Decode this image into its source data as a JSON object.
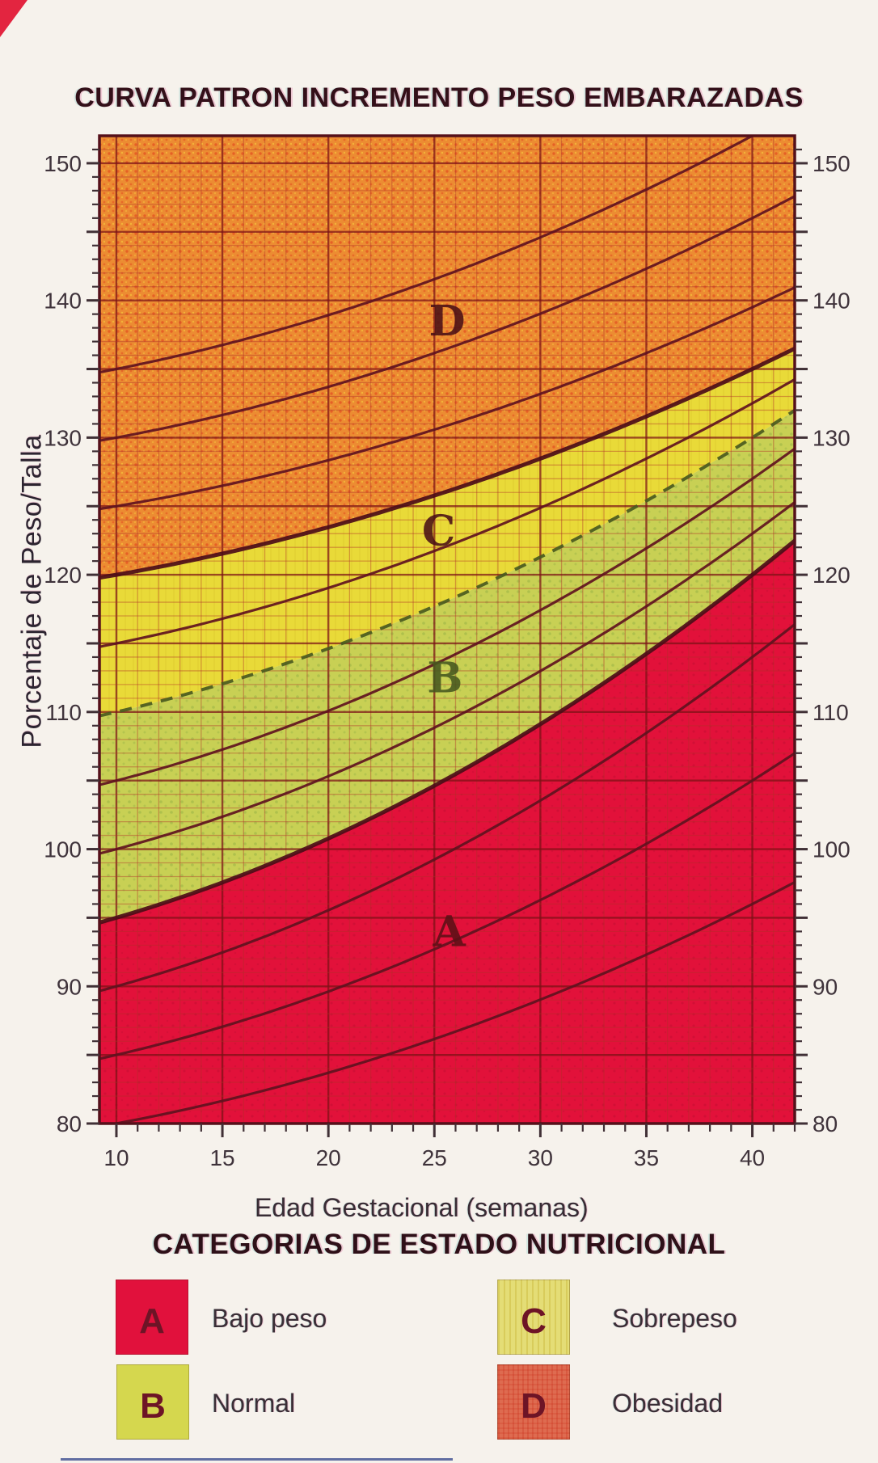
{
  "page": {
    "background_color": "#f6f2ec",
    "artifacts": {
      "corner_mark_color": "#e32540",
      "bottom_line_color": "#3c4c90"
    }
  },
  "chart_data": {
    "type": "area",
    "title": "CURVA PATRON INCREMENTO PESO EMBARAZADAS",
    "xlabel": "Edad Gestacional (semanas)",
    "ylabel": "Porcentaje de Peso/Talla",
    "x_range": [
      9.2,
      42.0
    ],
    "y_range": [
      80,
      152
    ],
    "x_ticks_labeled": [
      10,
      15,
      20,
      25,
      30,
      35,
      40
    ],
    "y_ticks_labeled": [
      80,
      90,
      100,
      110,
      120,
      130,
      140,
      150
    ],
    "grid": {
      "minor_step_x_weeks": 1,
      "minor_step_y_pct": 1,
      "major_step": 5,
      "minor_color": "#b03028",
      "major_color": "#7c1216"
    },
    "frame_color": "#55101a",
    "tick_color": "#403036",
    "tick_label_color": "#3f333b",
    "curve_model": {
      "description": "pct(week) = start_pct_wk10 + rise_by_wk40 * (0.54*t + 0.46*t^2), t=(week-10)/30",
      "lin": 0.54,
      "quad": 0.46
    },
    "curve_colors": {
      "channel": "#5f1220",
      "boundary": "#4c0d18",
      "dashed_boundary": "#4a5a20"
    },
    "curves": [
      {
        "start_pct_wk10": 80,
        "rise_by_wk40": 16,
        "role": "channel"
      },
      {
        "start_pct_wk10": 85,
        "rise_by_wk40": 20,
        "role": "channel"
      },
      {
        "start_pct_wk10": 90,
        "rise_by_wk40": 24,
        "role": "channel"
      },
      {
        "start_pct_wk10": 95,
        "rise_by_wk40": 25,
        "role": "boundary-AB"
      },
      {
        "start_pct_wk10": 100,
        "rise_by_wk40": 23,
        "role": "channel"
      },
      {
        "start_pct_wk10": 105,
        "rise_by_wk40": 22,
        "role": "channel"
      },
      {
        "start_pct_wk10": 110,
        "rise_by_wk40": 20,
        "role": "boundary-BC",
        "style": "dashed"
      },
      {
        "start_pct_wk10": 115,
        "rise_by_wk40": 17.5,
        "role": "channel"
      },
      {
        "start_pct_wk10": 120,
        "rise_by_wk40": 15,
        "role": "boundary-CD"
      },
      {
        "start_pct_wk10": 125,
        "rise_by_wk40": 14.5,
        "role": "channel"
      },
      {
        "start_pct_wk10": 130,
        "rise_by_wk40": 16,
        "role": "channel"
      },
      {
        "start_pct_wk10": 135,
        "rise_by_wk40": 17,
        "role": "channel"
      }
    ],
    "zones": [
      {
        "id": "A",
        "label": "Bajo peso",
        "color": "#e2113a",
        "letter_color": "#5c1016",
        "letter_pos": {
          "week": 25.7,
          "pct": 94.0
        },
        "bounds": "below curve 95→120"
      },
      {
        "id": "B",
        "label": "Normal",
        "color": "#c8d054",
        "letter_color": "#47581f",
        "letter_pos": {
          "week": 25.5,
          "pct": 112.5
        },
        "bounds": "between curve 95→120 and dashed curve 110→130"
      },
      {
        "id": "C",
        "label": "Sobrepeso",
        "color": "#e9da38",
        "letter_color": "#4a1016",
        "letter_pos": {
          "week": 25.2,
          "pct": 123.2
        },
        "bounds": "between dashed curve 110→130 and curve 120→135"
      },
      {
        "id": "D",
        "label": "Obesidad",
        "color": "#ec8c32",
        "letter_color": "#4a1016",
        "letter_pos": {
          "week": 25.6,
          "pct": 138.5
        },
        "bounds": "above curve 120→135"
      }
    ],
    "texture_colors": {
      "d_speckle_red": "#e03318",
      "d_speckle_yellow": "#f8d840",
      "b_speckle_green": "#8fae43",
      "a_speckle_dark": "#c00d30",
      "c_stripe": "#d8c22c"
    }
  },
  "legend": {
    "title": "CATEGORIAS DE ESTADO NUTRICIONAL",
    "items": [
      {
        "letter": "A",
        "label": "Bajo peso",
        "swatch_color": "#e1113c",
        "letter_color": "#6d1426",
        "column": 1,
        "row": 1
      },
      {
        "letter": "B",
        "label": "Normal",
        "swatch_color": "#d5d74e",
        "letter_color": "#6d1426",
        "column": 1,
        "row": 2
      },
      {
        "letter": "C",
        "label": "Sobrepeso",
        "swatch_color": "#e4dd76",
        "letter_color": "#6d1426",
        "column": 2,
        "row": 1
      },
      {
        "letter": "D",
        "label": "Obesidad",
        "swatch_color": "#de6b50",
        "letter_color": "#6d1426",
        "column": 2,
        "row": 2
      }
    ]
  }
}
